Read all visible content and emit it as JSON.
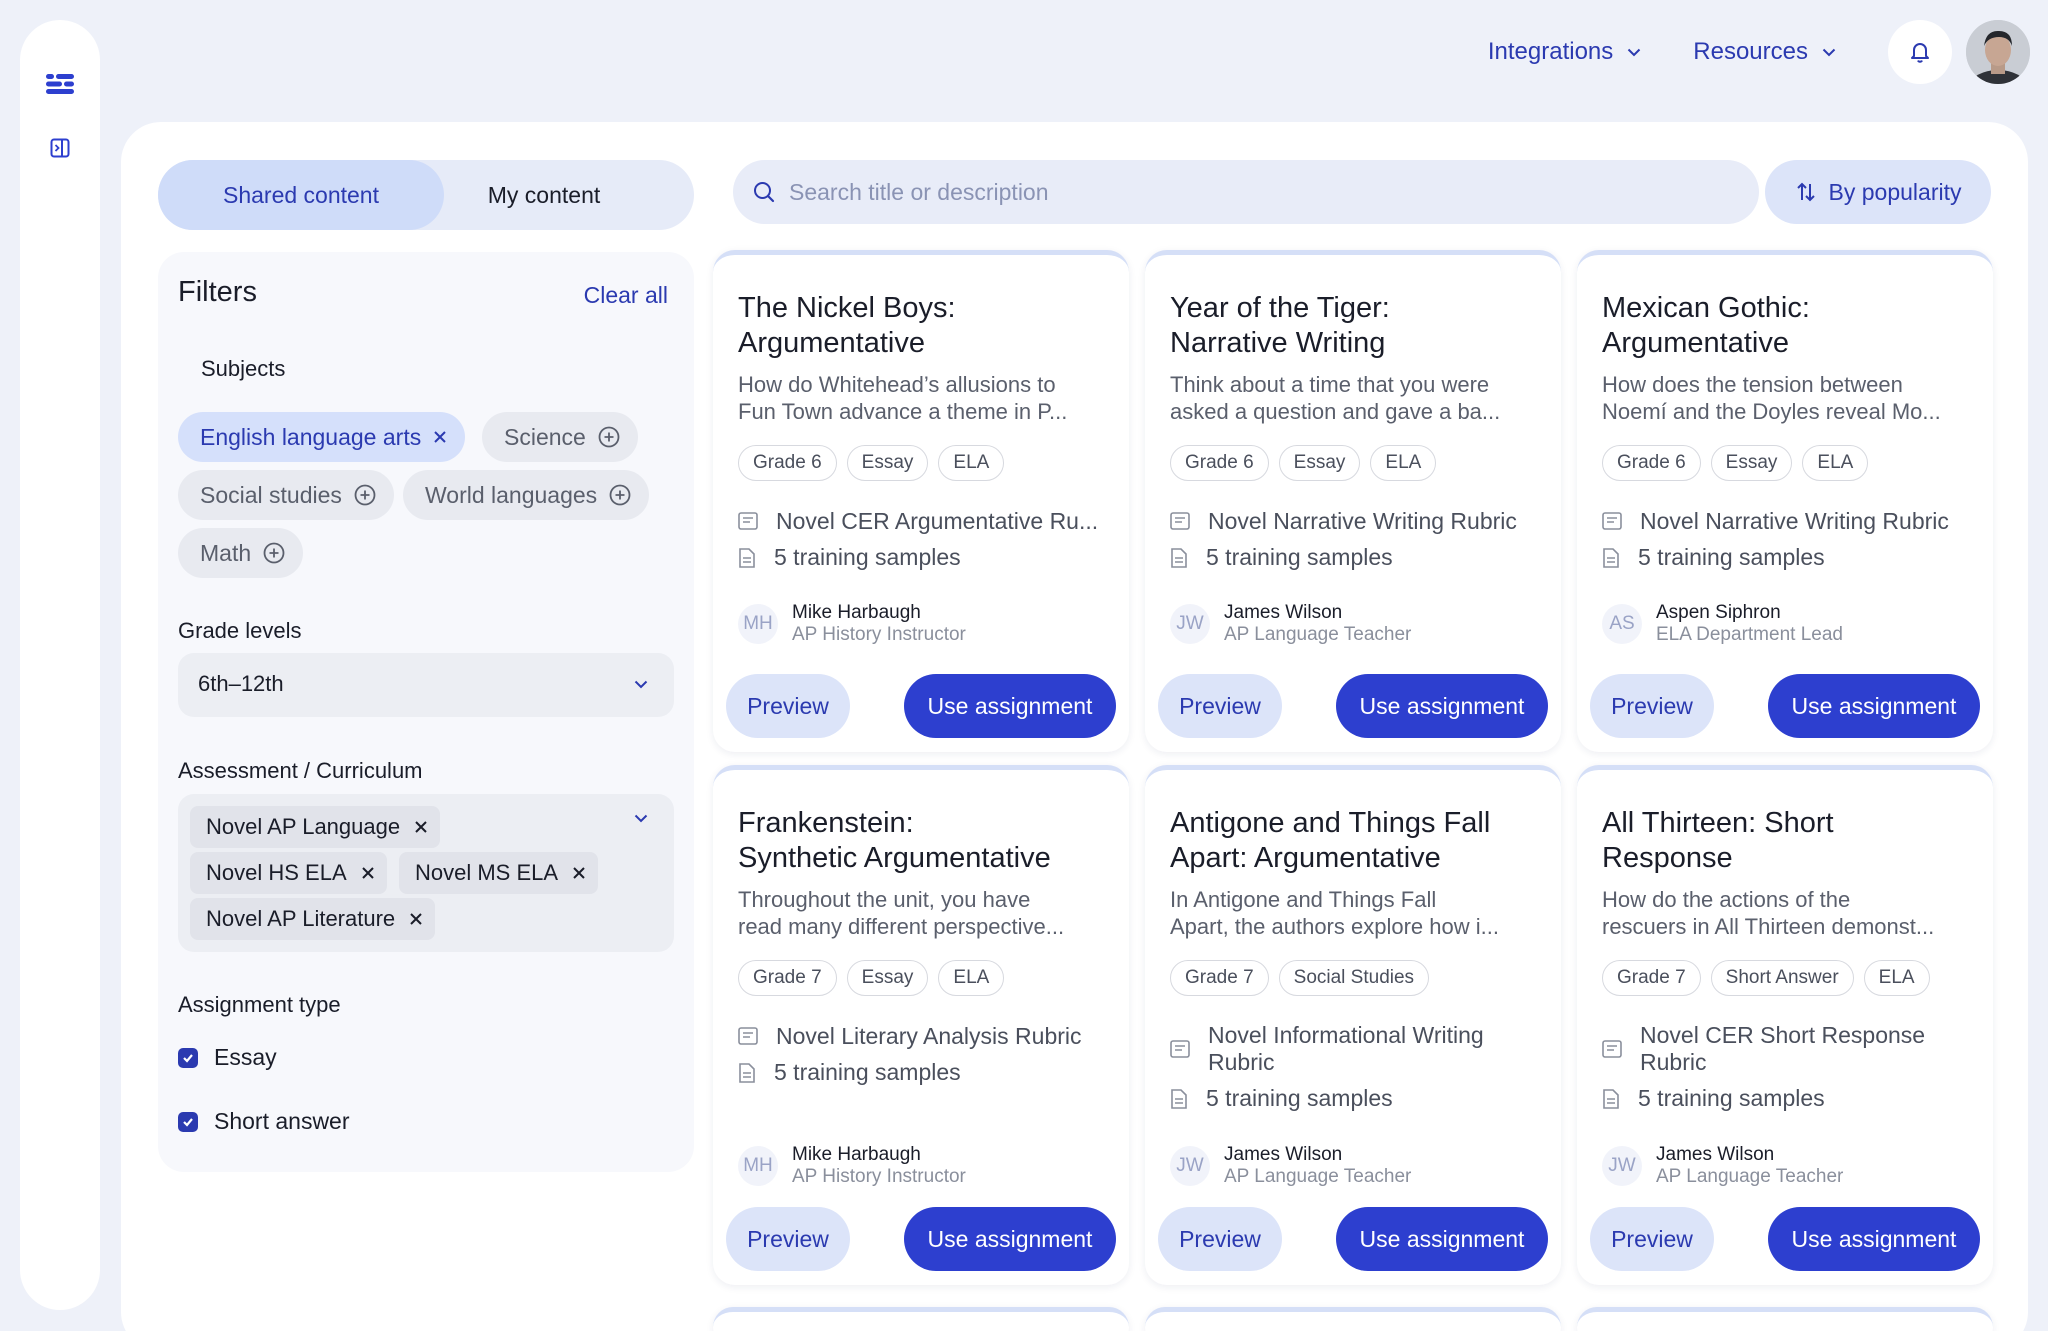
{
  "nav": {
    "integrations_label": "Integrations",
    "resources_label": "Resources"
  },
  "tabs": {
    "shared": "Shared content",
    "mine": "My content"
  },
  "filters": {
    "title": "Filters",
    "clear_all": "Clear all",
    "subjects_heading": "Subjects",
    "subjects": [
      {
        "label": "English language arts",
        "selected": true
      },
      {
        "label": "Science",
        "selected": false
      },
      {
        "label": "Social studies",
        "selected": false
      },
      {
        "label": "World languages",
        "selected": false
      },
      {
        "label": "Math",
        "selected": false
      }
    ],
    "grade_heading": "Grade levels",
    "grade_value": "6th–12th",
    "curriculum_heading": "Assessment / Curriculum",
    "curriculum_selected": [
      "Novel AP Language",
      "Novel HS ELA",
      "Novel MS ELA",
      "Novel AP Literature"
    ],
    "type_heading": "Assignment type",
    "types": [
      {
        "label": "Essay",
        "checked": true
      },
      {
        "label": "Short answer",
        "checked": true
      }
    ]
  },
  "search": {
    "placeholder": "Search title or description",
    "value": ""
  },
  "sort": {
    "label": "By popularity"
  },
  "cards": [
    {
      "title_lines": [
        "The Nickel Boys:",
        "Argumentative"
      ],
      "desc_lines": [
        "How do Whitehead’s allusions to",
        "Fun Town advance a theme in P..."
      ],
      "tags": [
        "Grade 6",
        "Essay",
        "ELA"
      ],
      "rubric": "Novel CER Argumentative Ru...",
      "samples": "5 training samples",
      "initials": "MH",
      "author": "Mike Harbaugh",
      "role": "AP History Instructor",
      "preview": "Preview",
      "use": "Use assignment"
    },
    {
      "title_lines": [
        "Year of the Tiger:",
        "Narrative Writing"
      ],
      "desc_lines": [
        "Think about a time that you were",
        "asked a question and gave a ba..."
      ],
      "tags": [
        "Grade 6",
        "Essay",
        "ELA"
      ],
      "rubric": "Novel Narrative Writing Rubric",
      "samples": "5 training samples",
      "initials": "JW",
      "author": "James Wilson",
      "role": "AP Language Teacher",
      "preview": "Preview",
      "use": "Use assignment"
    },
    {
      "title_lines": [
        "Mexican Gothic:",
        "Argumentative"
      ],
      "desc_lines": [
        "How does the tension between",
        "Noemí and the Doyles reveal Mo..."
      ],
      "tags": [
        "Grade 6",
        "Essay",
        "ELA"
      ],
      "rubric": "Novel Narrative Writing Rubric",
      "samples": "5 training samples",
      "initials": "AS",
      "author": "Aspen Siphron",
      "role": "ELA Department Lead",
      "preview": "Preview",
      "use": "Use assignment"
    },
    {
      "title_lines": [
        "Frankenstein:",
        "Synthetic Argumentative"
      ],
      "desc_lines": [
        "Throughout the unit, you have",
        "read many different perspective..."
      ],
      "tags": [
        "Grade 7",
        "Essay",
        "ELA"
      ],
      "rubric": "Novel Literary Analysis Rubric",
      "samples": "5 training samples",
      "initials": "MH",
      "author": "Mike Harbaugh",
      "role": "AP History Instructor",
      "preview": "Preview",
      "use": "Use assignment"
    },
    {
      "title_lines": [
        "Antigone and Things Fall",
        "Apart: Argumentative"
      ],
      "desc_lines": [
        "In Antigone and Things Fall",
        "Apart, the authors explore how i..."
      ],
      "tags": [
        "Grade 7",
        "Social Studies"
      ],
      "rubric": "Novel Informational Writing Rubric",
      "samples": "5 training samples",
      "initials": "JW",
      "author": "James Wilson",
      "role": "AP Language Teacher",
      "preview": "Preview",
      "use": "Use assignment"
    },
    {
      "title_lines": [
        "All Thirteen: Short",
        "Response"
      ],
      "desc_lines": [
        "How do the actions of the",
        "rescuers in All Thirteen demonst..."
      ],
      "tags": [
        "Grade 7",
        "Short Answer",
        "ELA"
      ],
      "rubric": "Novel CER Short Response Rubric",
      "samples": "5 training samples",
      "initials": "JW",
      "author": "James Wilson",
      "role": "AP Language Teacher",
      "preview": "Preview",
      "use": "Use assignment"
    }
  ],
  "colors": {
    "accent": "#2d3fcf",
    "accent_text": "#2b3ab0",
    "background": "#eef1f9"
  }
}
